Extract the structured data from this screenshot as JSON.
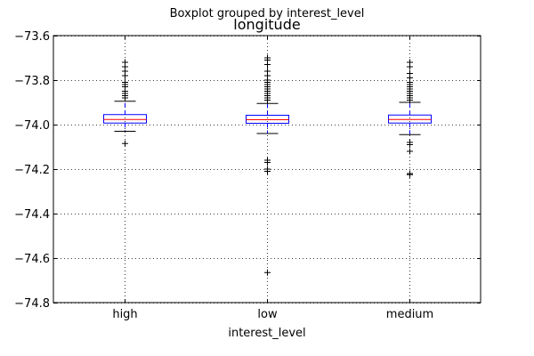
{
  "chart_data": {
    "type": "boxplot",
    "suptitle": "Boxplot grouped by interest_level",
    "title": "longitude",
    "xlabel": "interest_level",
    "ylabel": "",
    "categories": [
      "high",
      "low",
      "medium"
    ],
    "ylim": [
      -74.8,
      -73.6
    ],
    "yticks": [
      -73.6,
      -73.8,
      -74.0,
      -74.2,
      -74.4,
      -74.6,
      -74.8
    ],
    "ytick_labels": [
      "−73.6",
      "−73.8",
      "−74.0",
      "−74.2",
      "−74.4",
      "−74.6",
      "−74.8"
    ],
    "grid": true,
    "boxes": [
      {
        "category": "high",
        "whisker_high": -73.895,
        "q3": -73.955,
        "median": -73.977,
        "q1": -73.993,
        "whisker_low": -74.03,
        "outliers_high": [
          -73.72,
          -73.74,
          -73.76,
          -73.78,
          -73.81,
          -73.82,
          -73.83,
          -73.85,
          -73.86,
          -73.87,
          -73.88
        ],
        "outliers_low": [
          -74.085
        ]
      },
      {
        "category": "low",
        "whisker_high": -73.905,
        "q3": -73.958,
        "median": -73.978,
        "q1": -73.994,
        "whisker_low": -74.04,
        "outliers_high": [
          -73.7,
          -73.71,
          -73.73,
          -73.76,
          -73.78,
          -73.8,
          -73.81,
          -73.82,
          -73.83,
          -73.84,
          -73.85,
          -73.86,
          -73.87,
          -73.88,
          -73.89
        ],
        "outliers_low": [
          -74.16,
          -74.17,
          -74.2,
          -74.21,
          -74.665
        ]
      },
      {
        "category": "medium",
        "whisker_high": -73.9,
        "q3": -73.957,
        "median": -73.977,
        "q1": -73.993,
        "whisker_low": -74.045,
        "outliers_high": [
          -73.72,
          -73.74,
          -73.77,
          -73.79,
          -73.81,
          -73.82,
          -73.83,
          -73.84,
          -73.85,
          -73.86,
          -73.87,
          -73.88,
          -73.89
        ],
        "outliers_low": [
          -74.08,
          -74.09,
          -74.12,
          -74.22,
          -74.225
        ]
      }
    ],
    "colors": {
      "box": "#0000ff",
      "whisker": "#0000ff",
      "median": "#ff0000",
      "cap": "#000000",
      "flier": "#000000",
      "grid": "#000000",
      "spine": "#000000"
    }
  }
}
